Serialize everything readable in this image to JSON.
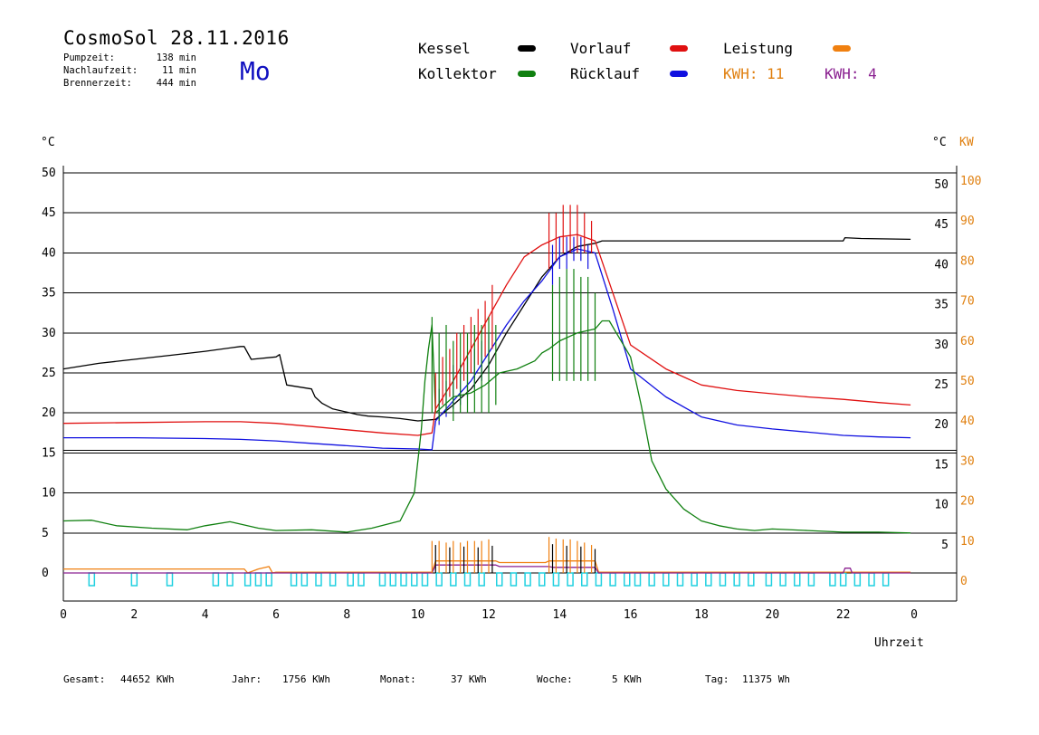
{
  "header": {
    "title": "CosmoSol 28.11.2016",
    "day": "Mo",
    "stats": [
      {
        "label": "Pumpzeit:",
        "value": "138 min"
      },
      {
        "label": "Nachlaufzeit:",
        "value": "11 min"
      },
      {
        "label": "Brennerzeit:",
        "value": "444 min"
      }
    ]
  },
  "legend": {
    "kessel": {
      "label": "Kessel",
      "color": "#000000"
    },
    "vorlauf": {
      "label": "Vorlauf",
      "color": "#e01010"
    },
    "leistung": {
      "label": "Leistung",
      "color": "#f08010"
    },
    "kollektor": {
      "label": "Kollektor",
      "color": "#108010"
    },
    "ruecklauf": {
      "label": "Rücklauf",
      "color": "#1010e0"
    },
    "kwh1": {
      "label": "KWH: 11",
      "color": "#e08010"
    },
    "kwh2": {
      "label": "KWH: 4",
      "color": "#8a2090"
    }
  },
  "footer": {
    "gesamt_label": "Gesamt:",
    "gesamt": "44652 KWh",
    "jahr_label": "Jahr:",
    "jahr": "1756 KWh",
    "monat_label": "Monat:",
    "monat": "37 KWh",
    "woche_label": "Woche:",
    "woche": "5 KWh",
    "tag_label": "Tag:",
    "tag": "11375 Wh"
  },
  "chart_data": {
    "type": "line",
    "xlabel": "Uhrzeit",
    "ylabel_left": "°C",
    "ylabel_right": [
      "°C",
      "KW"
    ],
    "xlim": [
      0,
      24
    ],
    "ylim": [
      0,
      50
    ],
    "ylim_right_kw": [
      0,
      100
    ],
    "x_ticks": [
      "0",
      "2",
      "4",
      "6",
      "8",
      "10",
      "12",
      "14",
      "16",
      "18",
      "20",
      "22",
      "0"
    ],
    "y_ticks": [
      "0",
      "5",
      "10",
      "15",
      "20",
      "25",
      "30",
      "35",
      "40",
      "45",
      "50"
    ],
    "y_ticks_kw": [
      "0",
      "10",
      "20",
      "30",
      "40",
      "50",
      "60",
      "70",
      "80",
      "90",
      "100"
    ],
    "grid": "horizontal",
    "series": [
      {
        "name": "Kessel",
        "color": "#000000",
        "x": [
          0,
          1,
          2,
          3,
          4,
          5,
          5.1,
          5.3,
          6.0,
          6.1,
          6.3,
          7.0,
          7.1,
          7.3,
          7.6,
          8.0,
          8.3,
          8.6,
          9.0,
          9.5,
          10.0,
          10.5,
          11.0,
          11.5,
          12.0,
          12.5,
          13.0,
          13.5,
          14.0,
          14.5,
          15.0,
          15.2,
          16,
          18,
          20,
          22,
          22.05,
          22.5,
          23.9
        ],
        "y": [
          25.5,
          26.2,
          26.7,
          27.2,
          27.7,
          28.3,
          28.3,
          26.7,
          27.0,
          27.3,
          23.5,
          23.0,
          22.0,
          21.2,
          20.5,
          20.1,
          19.8,
          19.6,
          19.5,
          19.3,
          19.0,
          19.2,
          21.0,
          23.0,
          26.0,
          30.0,
          33.5,
          37.0,
          39.5,
          40.8,
          41.2,
          41.5,
          41.5,
          41.5,
          41.5,
          41.5,
          41.9,
          41.8,
          41.7
        ]
      },
      {
        "name": "Vorlauf",
        "color": "#e01010",
        "x": [
          0,
          2,
          4,
          5,
          6,
          7,
          8,
          9,
          10.0,
          10.4,
          10.5,
          11.0,
          11.5,
          12.0,
          12.5,
          13.0,
          13.5,
          14.0,
          14.5,
          15.0,
          15.5,
          16.0,
          17.0,
          18.0,
          19.0,
          20.0,
          21.0,
          22.0,
          23.0,
          23.9
        ],
        "y": [
          18.7,
          18.8,
          18.9,
          18.9,
          18.7,
          18.3,
          17.9,
          17.5,
          17.2,
          17.5,
          20.5,
          24.0,
          28.0,
          32.0,
          36.0,
          39.5,
          41.0,
          42.0,
          42.3,
          41.5,
          35.0,
          28.5,
          25.5,
          23.5,
          22.8,
          22.4,
          22.0,
          21.7,
          21.3,
          21.0
        ]
      },
      {
        "name": "Rücklauf",
        "color": "#1010e0",
        "x": [
          0,
          2,
          4,
          5,
          6,
          7,
          8,
          9,
          10.0,
          10.4,
          10.5,
          11.0,
          11.5,
          12.0,
          12.5,
          13.0,
          13.5,
          14.0,
          14.5,
          15.0,
          15.5,
          16.0,
          17.0,
          18.0,
          19.0,
          20.0,
          21.0,
          22.0,
          23.0,
          23.9
        ],
        "y": [
          16.9,
          16.9,
          16.8,
          16.7,
          16.5,
          16.2,
          15.9,
          15.6,
          15.5,
          15.4,
          19.0,
          21.5,
          24.0,
          27.5,
          31.0,
          34.0,
          36.5,
          39.5,
          40.5,
          40.0,
          33.0,
          25.5,
          22.0,
          19.5,
          18.5,
          18.0,
          17.6,
          17.2,
          17.0,
          16.9
        ]
      },
      {
        "name": "Kollektor",
        "color": "#108010",
        "x": [
          0,
          0.8,
          1.5,
          2.5,
          3.5,
          4.0,
          4.7,
          5.5,
          6.0,
          7.0,
          8.0,
          8.7,
          9.5,
          9.9,
          10.1,
          10.2,
          10.3,
          10.4,
          10.5,
          11.0,
          11.5,
          11.9,
          12.3,
          12.8,
          13.3,
          13.5,
          13.7,
          14.0,
          14.5,
          15.0,
          15.2,
          15.4,
          15.6,
          16.0,
          16.3,
          16.6,
          17.0,
          17.5,
          18.0,
          18.5,
          19.0,
          19.5,
          20.0,
          21.0,
          22.0,
          23.0,
          23.9
        ],
        "y": [
          6.5,
          6.6,
          5.9,
          5.6,
          5.4,
          5.9,
          6.4,
          5.6,
          5.3,
          5.4,
          5.1,
          5.6,
          6.5,
          10.0,
          18.0,
          24.0,
          28.0,
          31.0,
          20.0,
          22.0,
          22.5,
          23.5,
          25.0,
          25.5,
          26.5,
          27.5,
          28.0,
          29.0,
          30.0,
          30.5,
          31.5,
          31.5,
          30.0,
          27.0,
          21.0,
          14.0,
          10.5,
          8.0,
          6.5,
          5.9,
          5.5,
          5.3,
          5.5,
          5.3,
          5.1,
          5.1,
          5.0
        ]
      },
      {
        "name": "Leistung",
        "color": "#f08010",
        "x": [
          0,
          5.1,
          5.2,
          5.5,
          5.8,
          5.9,
          6.0,
          10.4,
          10.5,
          12.2,
          12.3,
          13.6,
          13.7,
          15.0,
          15.1,
          23.9
        ],
        "y": [
          0.5,
          0.5,
          0.0,
          0.5,
          0.8,
          0.0,
          0.1,
          0.1,
          1.5,
          1.5,
          1.3,
          1.3,
          1.5,
          1.5,
          0.1,
          0.1
        ]
      },
      {
        "name": "KWH",
        "color": "#8a2090",
        "x": [
          0,
          10.4,
          10.5,
          12.2,
          12.3,
          13.7,
          13.8,
          15.0,
          15.1,
          22.0,
          22.05,
          22.2,
          22.25,
          23.9
        ],
        "y": [
          0,
          0,
          1.0,
          1.0,
          0.8,
          0.8,
          0.7,
          0.7,
          0,
          0,
          0.6,
          0.6,
          0,
          0
        ]
      }
    ]
  }
}
